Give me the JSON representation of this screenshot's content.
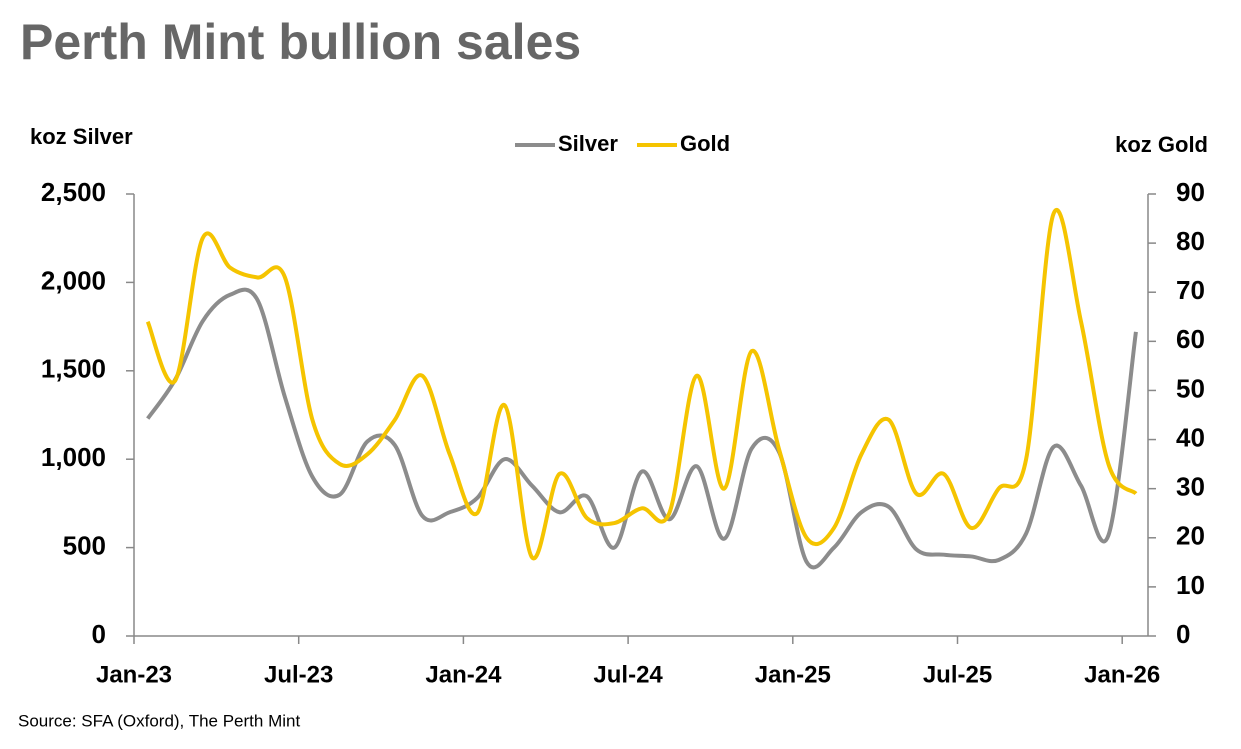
{
  "chart_data": {
    "type": "line",
    "title": "Perth Mint bullion sales",
    "y_label": "koz Silver",
    "y2_label": "koz Gold",
    "source": "Source: SFA (Oxford), The Perth Mint",
    "legend": "top-center",
    "categories": [
      "Jan-23",
      null,
      null,
      null,
      null,
      null,
      "Jul-23",
      null,
      null,
      null,
      null,
      null,
      "Jan-24",
      null,
      null,
      null,
      null,
      null,
      "Jul-24",
      null,
      null,
      null,
      null,
      null,
      "Jan-25",
      null,
      null,
      null,
      null,
      null,
      "Jul-25",
      null,
      null,
      null,
      null,
      null,
      "Jan-26"
    ],
    "series": [
      {
        "name": "Silver",
        "color": "#8c8c8c",
        "axis": "y",
        "values": [
          1230,
          1450,
          1780,
          1930,
          1900,
          1350,
          900,
          800,
          1100,
          1080,
          680,
          700,
          780,
          1000,
          850,
          700,
          790,
          500,
          930,
          660,
          960,
          550,
          1060,
          1040,
          420,
          500,
          700,
          730,
          490,
          460,
          450,
          430,
          580,
          1070,
          850,
          570,
          1720
        ]
      },
      {
        "name": "Gold",
        "color": "#f5c400",
        "axis": "y2",
        "values": [
          64,
          52,
          81,
          75,
          73,
          73,
          44,
          35,
          37,
          44,
          53,
          37,
          25,
          47,
          16,
          33,
          24,
          23,
          26,
          25,
          53,
          30,
          58,
          38,
          20,
          22,
          37,
          44,
          29,
          33,
          22,
          30,
          36,
          86,
          64,
          35,
          29
        ]
      }
    ],
    "ylim": [
      0,
      2500
    ],
    "yticks": [
      0,
      500,
      {
        "value": 1000,
        "label": "1,000"
      },
      {
        "value": 1500,
        "label": "1,500"
      },
      {
        "value": 2000,
        "label": "2,000"
      },
      {
        "value": 2500,
        "label": "2,500"
      }
    ],
    "y2lim": [
      0,
      90
    ],
    "y2ticks": [
      0,
      10,
      20,
      30,
      40,
      50,
      60,
      70,
      80,
      90
    ],
    "grid": false
  }
}
